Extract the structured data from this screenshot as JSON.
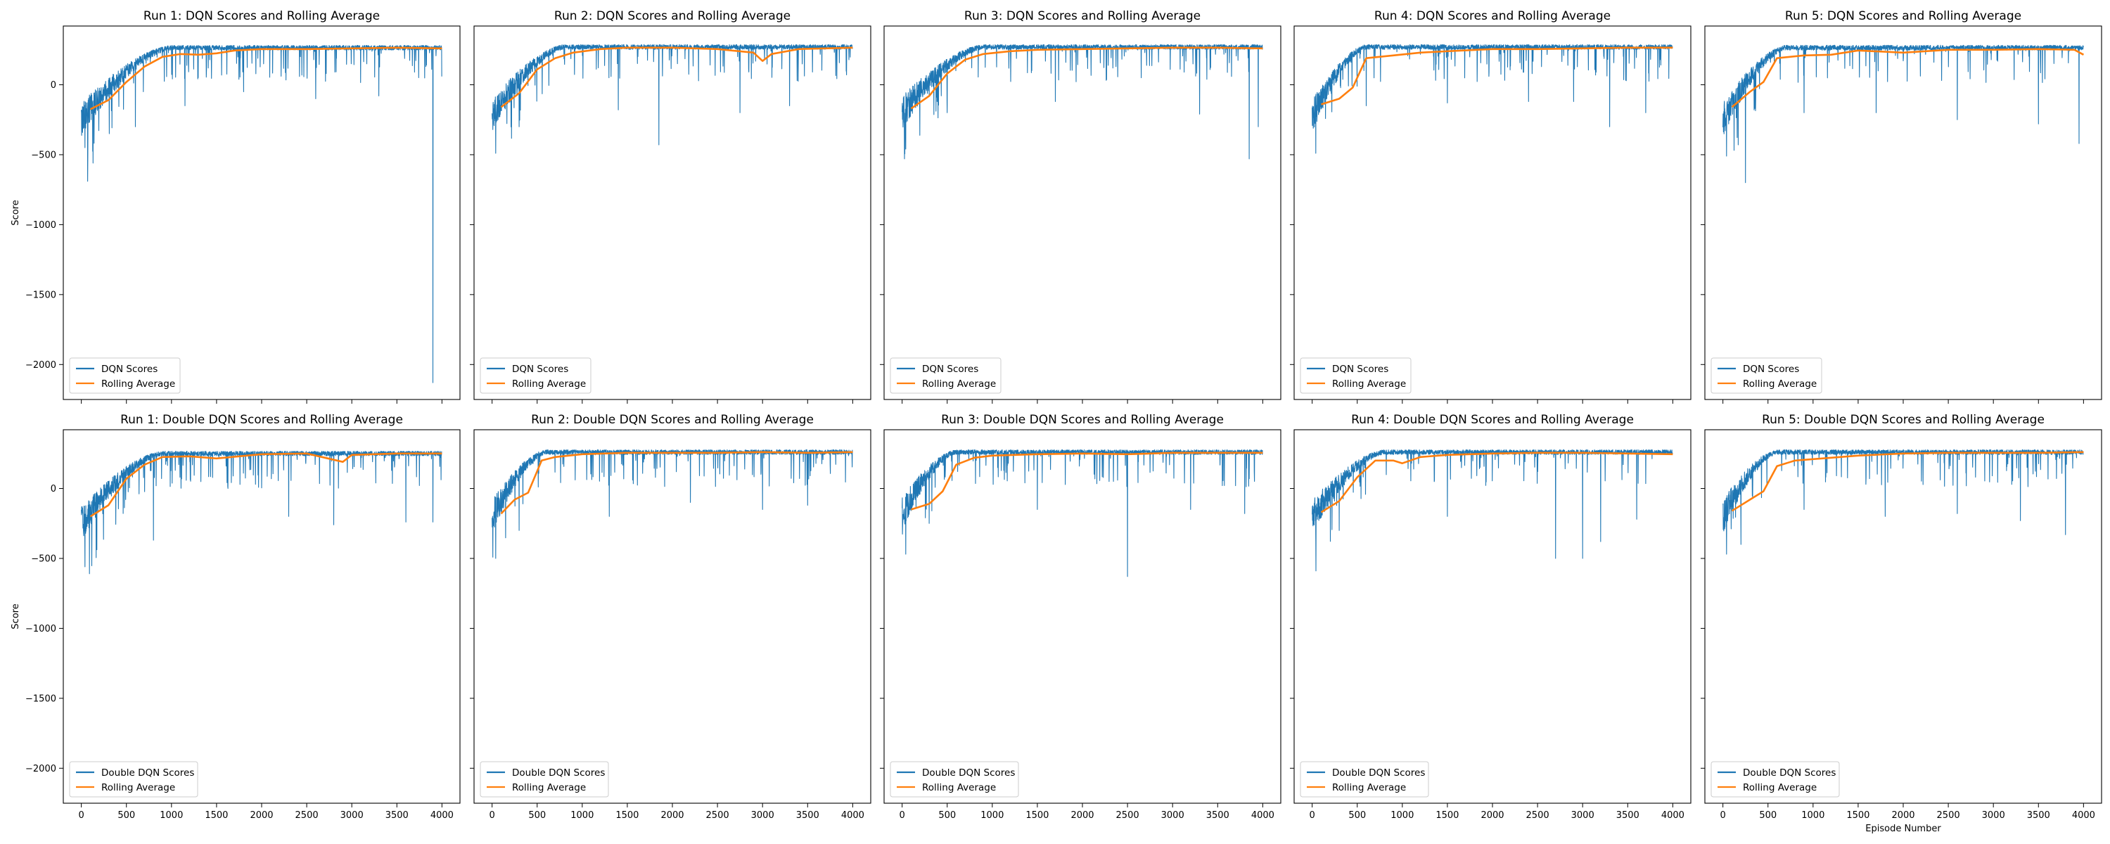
{
  "figure": {
    "colors": {
      "scores": "#1f77b4",
      "rolling": "#ff7f0e",
      "axes": "#000000",
      "legend_border": "#cccccc"
    },
    "shared_y_label": "Score",
    "shared_x_label": "Episode Number"
  },
  "chart_data": [
    {
      "type": "line",
      "title": "Run 1: DQN Scores and Rolling Average",
      "xlabel": "",
      "ylabel": "Score",
      "xlim": [
        -200,
        4200
      ],
      "ylim": [
        -2250,
        420
      ],
      "xticks": [
        0,
        500,
        1000,
        1500,
        2000,
        2500,
        3000,
        3500,
        4000
      ],
      "yticks": [
        -2000,
        -1500,
        -1000,
        -500,
        0
      ],
      "grid": false,
      "legend": "lower-left",
      "series": [
        {
          "name": "DQN Scores",
          "color": "#1f77b4",
          "kind": "noisy-scores",
          "episodes": 4000,
          "start_mean": -250,
          "plateau": 265,
          "rise_episode": 1000,
          "spread_start": 200,
          "spread_end": 28,
          "dips": [
            [
              40,
              -450
            ],
            [
              70,
              -690
            ],
            [
              130,
              -560
            ],
            [
              310,
              -350
            ],
            [
              600,
              -300
            ],
            [
              1150,
              -150
            ],
            [
              1800,
              -50
            ],
            [
              2600,
              -100
            ],
            [
              3300,
              -80
            ],
            [
              3900,
              -2130
            ]
          ]
        },
        {
          "name": "Rolling Average",
          "color": "#ff7f0e",
          "kind": "rolling",
          "x": [
            100,
            300,
            500,
            700,
            900,
            1100,
            1300,
            1500,
            1700,
            2000,
            2500,
            3000,
            3500,
            4000
          ],
          "y": [
            -175,
            -110,
            20,
            130,
            200,
            220,
            215,
            225,
            245,
            255,
            255,
            260,
            265,
            260
          ]
        }
      ]
    },
    {
      "type": "line",
      "title": "Run 2: DQN Scores and Rolling Average",
      "xlabel": "",
      "ylabel": "",
      "xlim": [
        -200,
        4200
      ],
      "ylim": [
        -2250,
        420
      ],
      "xticks": [
        0,
        500,
        1000,
        1500,
        2000,
        2500,
        3000,
        3500,
        4000
      ],
      "yticks": [
        -2000,
        -1500,
        -1000,
        -500,
        0
      ],
      "grid": false,
      "legend": "lower-left",
      "series": [
        {
          "name": "DQN Scores",
          "color": "#1f77b4",
          "kind": "noisy-scores",
          "episodes": 4000,
          "start_mean": -220,
          "plateau": 270,
          "rise_episode": 800,
          "spread_start": 200,
          "spread_end": 28,
          "dips": [
            [
              40,
              -490
            ],
            [
              300,
              -300
            ],
            [
              1400,
              -180
            ],
            [
              1850,
              -430
            ],
            [
              2750,
              -200
            ],
            [
              3300,
              -150
            ]
          ]
        },
        {
          "name": "Rolling Average",
          "color": "#ff7f0e",
          "kind": "rolling",
          "x": [
            100,
            300,
            500,
            700,
            900,
            1200,
            1500,
            2000,
            2500,
            2900,
            3000,
            3100,
            3400,
            4000
          ],
          "y": [
            -160,
            -60,
            110,
            190,
            230,
            255,
            265,
            265,
            255,
            230,
            170,
            220,
            255,
            265
          ]
        }
      ]
    },
    {
      "type": "line",
      "title": "Run 3: DQN Scores and Rolling Average",
      "xlabel": "",
      "ylabel": "",
      "xlim": [
        -200,
        4200
      ],
      "ylim": [
        -2250,
        420
      ],
      "xticks": [
        0,
        500,
        1000,
        1500,
        2000,
        2500,
        3000,
        3500,
        4000
      ],
      "yticks": [
        -2000,
        -1500,
        -1000,
        -500,
        0
      ],
      "grid": false,
      "legend": "lower-left",
      "series": [
        {
          "name": "DQN Scores",
          "color": "#1f77b4",
          "kind": "noisy-scores",
          "episodes": 4000,
          "start_mean": -200,
          "plateau": 270,
          "rise_episode": 900,
          "spread_start": 200,
          "spread_end": 28,
          "dips": [
            [
              40,
              -460
            ],
            [
              500,
              -200
            ],
            [
              1700,
              -120
            ],
            [
              3300,
              -210
            ],
            [
              3850,
              -530
            ],
            [
              3950,
              -300
            ]
          ]
        },
        {
          "name": "Rolling Average",
          "color": "#ff7f0e",
          "kind": "rolling",
          "x": [
            100,
            300,
            500,
            700,
            900,
            1200,
            1500,
            2000,
            2500,
            3000,
            3500,
            4000
          ],
          "y": [
            -170,
            -80,
            80,
            180,
            220,
            240,
            250,
            255,
            260,
            265,
            265,
            260
          ]
        }
      ]
    },
    {
      "type": "line",
      "title": "Run 4: DQN Scores and Rolling Average",
      "xlabel": "",
      "ylabel": "",
      "xlim": [
        -200,
        4200
      ],
      "ylim": [
        -2250,
        420
      ],
      "xticks": [
        0,
        500,
        1000,
        1500,
        2000,
        2500,
        3000,
        3500,
        4000
      ],
      "yticks": [
        -2000,
        -1500,
        -1000,
        -500,
        0
      ],
      "grid": false,
      "legend": "lower-left",
      "series": [
        {
          "name": "DQN Scores",
          "color": "#1f77b4",
          "kind": "noisy-scores",
          "episodes": 4000,
          "start_mean": -230,
          "plateau": 270,
          "rise_episode": 600,
          "spread_start": 200,
          "spread_end": 28,
          "dips": [
            [
              40,
              -490
            ],
            [
              600,
              -150
            ],
            [
              1500,
              -130
            ],
            [
              2400,
              -120
            ],
            [
              2900,
              -120
            ],
            [
              3300,
              -300
            ],
            [
              3700,
              -200
            ]
          ]
        },
        {
          "name": "Rolling Average",
          "color": "#ff7f0e",
          "kind": "rolling",
          "x": [
            100,
            300,
            450,
            600,
            900,
            1200,
            1500,
            2000,
            2500,
            3000,
            3500,
            4000
          ],
          "y": [
            -140,
            -100,
            -20,
            190,
            210,
            230,
            240,
            255,
            255,
            260,
            265,
            265
          ]
        }
      ]
    },
    {
      "type": "line",
      "title": "Run 5: DQN Scores and Rolling Average",
      "xlabel": "",
      "ylabel": "",
      "xlim": [
        -200,
        4200
      ],
      "ylim": [
        -2250,
        420
      ],
      "xticks": [
        0,
        500,
        1000,
        1500,
        2000,
        2500,
        3000,
        3500,
        4000
      ],
      "yticks": [
        -2000,
        -1500,
        -1000,
        -500,
        0
      ],
      "grid": false,
      "legend": "lower-left",
      "series": [
        {
          "name": "DQN Scores",
          "color": "#1f77b4",
          "kind": "noisy-scores",
          "episodes": 4000,
          "start_mean": -250,
          "plateau": 265,
          "rise_episode": 700,
          "spread_start": 200,
          "spread_end": 30,
          "dips": [
            [
              40,
              -510
            ],
            [
              250,
              -700
            ],
            [
              900,
              -200
            ],
            [
              1700,
              -200
            ],
            [
              2600,
              -250
            ],
            [
              3500,
              -280
            ],
            [
              3950,
              -420
            ]
          ]
        },
        {
          "name": "Rolling Average",
          "color": "#ff7f0e",
          "kind": "rolling",
          "x": [
            100,
            300,
            450,
            600,
            900,
            1200,
            1500,
            2000,
            2500,
            3000,
            3500,
            3900,
            4000
          ],
          "y": [
            -160,
            -50,
            20,
            190,
            210,
            215,
            245,
            230,
            250,
            250,
            255,
            250,
            215
          ]
        }
      ]
    },
    {
      "type": "line",
      "title": "Run 1: Double DQN Scores and Rolling Average",
      "xlabel": "",
      "ylabel": "Score",
      "xlim": [
        -200,
        4200
      ],
      "ylim": [
        -2250,
        420
      ],
      "xticks": [
        0,
        500,
        1000,
        1500,
        2000,
        2500,
        3000,
        3500,
        4000
      ],
      "yticks": [
        -2000,
        -1500,
        -1000,
        -500,
        0
      ],
      "grid": false,
      "legend": "lower-left",
      "series": [
        {
          "name": "Double DQN Scores",
          "color": "#1f77b4",
          "kind": "noisy-scores",
          "episodes": 4000,
          "start_mean": -250,
          "plateau": 250,
          "rise_episode": 900,
          "spread_start": 200,
          "spread_end": 28,
          "dips": [
            [
              40,
              -560
            ],
            [
              90,
              -610
            ],
            [
              800,
              -370
            ],
            [
              2300,
              -200
            ],
            [
              2800,
              -260
            ],
            [
              3600,
              -240
            ],
            [
              3900,
              -240
            ]
          ]
        },
        {
          "name": "Rolling Average",
          "color": "#ff7f0e",
          "kind": "rolling",
          "x": [
            100,
            300,
            500,
            700,
            900,
            1200,
            1500,
            2000,
            2500,
            2900,
            3000,
            3500,
            4000
          ],
          "y": [
            -200,
            -120,
            70,
            170,
            225,
            230,
            215,
            245,
            250,
            190,
            240,
            250,
            250
          ]
        }
      ]
    },
    {
      "type": "line",
      "title": "Run 2: Double DQN Scores and Rolling Average",
      "xlabel": "",
      "ylabel": "",
      "xlim": [
        -200,
        4200
      ],
      "ylim": [
        -2250,
        420
      ],
      "xticks": [
        0,
        500,
        1000,
        1500,
        2000,
        2500,
        3000,
        3500,
        4000
      ],
      "yticks": [
        -2000,
        -1500,
        -1000,
        -500,
        0
      ],
      "grid": false,
      "legend": "lower-left",
      "series": [
        {
          "name": "Double DQN Scores",
          "color": "#1f77b4",
          "kind": "noisy-scores",
          "episodes": 4000,
          "start_mean": -200,
          "plateau": 260,
          "rise_episode": 600,
          "spread_start": 200,
          "spread_end": 28,
          "dips": [
            [
              40,
              -500
            ],
            [
              300,
              -300
            ],
            [
              1300,
              -200
            ],
            [
              2200,
              -100
            ],
            [
              3000,
              -150
            ],
            [
              3500,
              -120
            ]
          ]
        },
        {
          "name": "Rolling Average",
          "color": "#ff7f0e",
          "kind": "rolling",
          "x": [
            100,
            250,
            400,
            550,
            700,
            1000,
            1500,
            2000,
            2500,
            3000,
            3500,
            4000
          ],
          "y": [
            -180,
            -80,
            -30,
            200,
            225,
            245,
            255,
            255,
            255,
            260,
            255,
            260
          ]
        }
      ]
    },
    {
      "type": "line",
      "title": "Run 3: Double DQN Scores and Rolling Average",
      "xlabel": "",
      "ylabel": "",
      "xlim": [
        -200,
        4200
      ],
      "ylim": [
        -2250,
        420
      ],
      "xticks": [
        0,
        500,
        1000,
        1500,
        2000,
        2500,
        3000,
        3500,
        4000
      ],
      "yticks": [
        -2000,
        -1500,
        -1000,
        -500,
        0
      ],
      "grid": false,
      "legend": "lower-left",
      "series": [
        {
          "name": "Double DQN Scores",
          "color": "#1f77b4",
          "kind": "noisy-scores",
          "episodes": 4000,
          "start_mean": -180,
          "plateau": 260,
          "rise_episode": 600,
          "spread_start": 200,
          "spread_end": 28,
          "dips": [
            [
              40,
              -470
            ],
            [
              300,
              -250
            ],
            [
              1500,
              -150
            ],
            [
              2500,
              -630
            ],
            [
              3200,
              -150
            ],
            [
              3800,
              -180
            ]
          ]
        },
        {
          "name": "Rolling Average",
          "color": "#ff7f0e",
          "kind": "rolling",
          "x": [
            100,
            300,
            450,
            600,
            800,
            1000,
            1500,
            2000,
            2500,
            3000,
            3500,
            4000
          ],
          "y": [
            -150,
            -110,
            -20,
            170,
            220,
            235,
            245,
            250,
            245,
            255,
            255,
            255
          ]
        }
      ]
    },
    {
      "type": "line",
      "title": "Run 4: Double DQN Scores and Rolling Average",
      "xlabel": "",
      "ylabel": "",
      "xlim": [
        -200,
        4200
      ],
      "ylim": [
        -2250,
        420
      ],
      "xticks": [
        0,
        500,
        1000,
        1500,
        2000,
        2500,
        3000,
        3500,
        4000
      ],
      "yticks": [
        -2000,
        -1500,
        -1000,
        -500,
        0
      ],
      "grid": false,
      "legend": "lower-left",
      "series": [
        {
          "name": "Double DQN Scores",
          "color": "#1f77b4",
          "kind": "noisy-scores",
          "episodes": 4000,
          "start_mean": -200,
          "plateau": 260,
          "rise_episode": 800,
          "spread_start": 200,
          "spread_end": 28,
          "dips": [
            [
              40,
              -380
            ],
            [
              300,
              -300
            ],
            [
              1500,
              -200
            ],
            [
              2700,
              -500
            ],
            [
              3000,
              -500
            ],
            [
              3200,
              -380
            ],
            [
              3600,
              -220
            ]
          ]
        },
        {
          "name": "Rolling Average",
          "color": "#ff7f0e",
          "kind": "rolling",
          "x": [
            100,
            300,
            500,
            700,
            900,
            1000,
            1200,
            1500,
            2000,
            2500,
            3000,
            3500,
            4000
          ],
          "y": [
            -170,
            -90,
            80,
            200,
            200,
            180,
            225,
            240,
            250,
            255,
            255,
            250,
            245
          ]
        }
      ]
    },
    {
      "type": "line",
      "title": "Run 5: Double DQN Scores and Rolling Average",
      "xlabel": "Episode Number",
      "ylabel": "",
      "xlim": [
        -200,
        4200
      ],
      "ylim": [
        -2250,
        420
      ],
      "xticks": [
        0,
        500,
        1000,
        1500,
        2000,
        2500,
        3000,
        3500,
        4000
      ],
      "yticks": [
        -2000,
        -1500,
        -1000,
        -500,
        0
      ],
      "grid": false,
      "legend": "lower-left",
      "series": [
        {
          "name": "Double DQN Scores",
          "color": "#1f77b4",
          "kind": "noisy-scores",
          "episodes": 4000,
          "start_mean": -200,
          "plateau": 260,
          "rise_episode": 600,
          "spread_start": 200,
          "spread_end": 28,
          "dips": [
            [
              40,
              -470
            ],
            [
              200,
              -400
            ],
            [
              900,
              -150
            ],
            [
              1800,
              -200
            ],
            [
              2600,
              -180
            ],
            [
              3300,
              -230
            ],
            [
              3800,
              -330
            ]
          ]
        },
        {
          "name": "Rolling Average",
          "color": "#ff7f0e",
          "kind": "rolling",
          "x": [
            100,
            300,
            450,
            600,
            800,
            1000,
            1500,
            2000,
            2500,
            3000,
            3500,
            4000
          ],
          "y": [
            -160,
            -80,
            -20,
            160,
            200,
            210,
            235,
            250,
            255,
            255,
            255,
            260
          ]
        }
      ]
    }
  ]
}
